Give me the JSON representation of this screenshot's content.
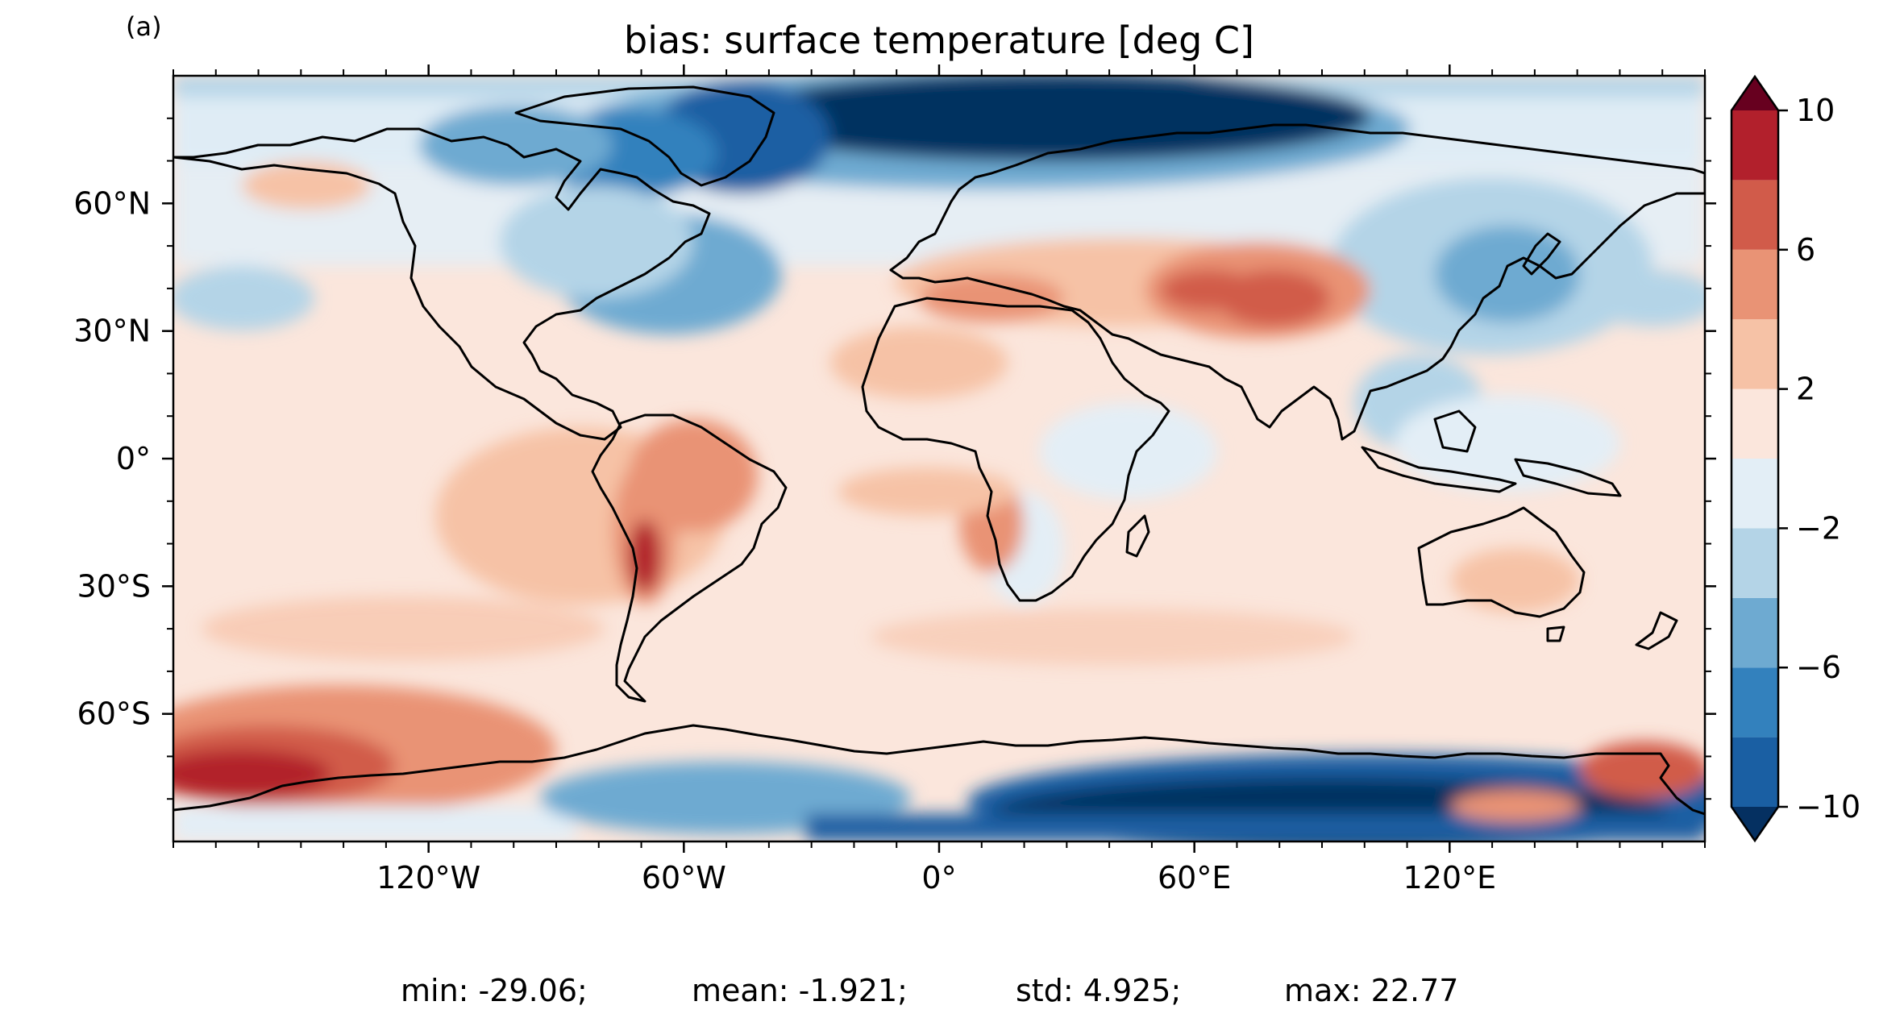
{
  "panel_label": "(a)",
  "title": "bias: surface temperature [deg C]",
  "stats": {
    "min": "min: -29.06;",
    "mean": "mean: -1.921;",
    "std": "std: 4.925;",
    "max": "max: 22.77"
  },
  "map": {
    "projection": "PlateCarree",
    "lon_range": [
      -180,
      180
    ],
    "lat_range": [
      -90,
      90
    ],
    "x_ticks": [
      {
        "lon": -120,
        "label": "120°W"
      },
      {
        "lon": -60,
        "label": "60°W"
      },
      {
        "lon": 0,
        "label": "0°"
      },
      {
        "lon": 60,
        "label": "60°E"
      },
      {
        "lon": 120,
        "label": "120°E"
      }
    ],
    "y_ticks": [
      {
        "lat": 60,
        "label": "60°N"
      },
      {
        "lat": 30,
        "label": "30°N"
      },
      {
        "lat": 0,
        "label": "0°"
      },
      {
        "lat": -30,
        "label": "30°S"
      },
      {
        "lat": -60,
        "label": "60°S"
      }
    ]
  },
  "colorbar": {
    "levels": [
      -10,
      -8,
      -6,
      -4,
      -2,
      0,
      2,
      4,
      6,
      8,
      10
    ],
    "colors": [
      "#1a5fa3",
      "#3381bd",
      "#6eaad1",
      "#b4d4e7",
      "#e3eef6",
      "#fbe6dc",
      "#f6c2a6",
      "#e99375",
      "#d15b4a",
      "#b2202c"
    ],
    "extend_low_color": "#053061",
    "extend_high_color": "#67001f",
    "ticks": [
      {
        "value": 10,
        "label": "10"
      },
      {
        "value": 6,
        "label": "6"
      },
      {
        "value": 2,
        "label": "2"
      },
      {
        "value": -2,
        "label": "−2"
      },
      {
        "value": -6,
        "label": "−6"
      },
      {
        "value": -10,
        "label": "−10"
      }
    ]
  }
}
